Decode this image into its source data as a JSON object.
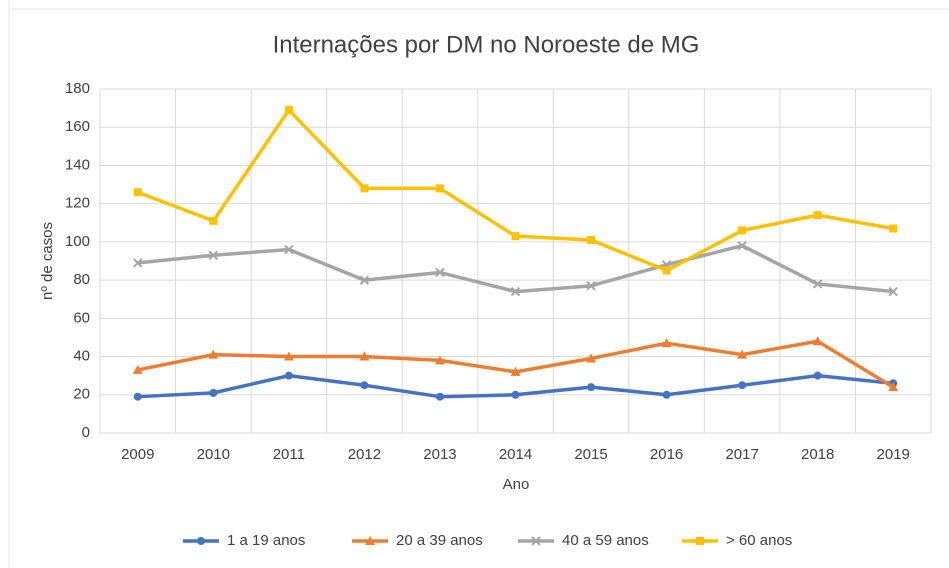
{
  "chart_data": {
    "type": "line",
    "title": "Internações por DM no Noroeste de MG",
    "x_label": "Ano",
    "y_label": "nº de casos",
    "categories": [
      "2009",
      "2010",
      "2011",
      "2012",
      "2013",
      "2014",
      "2015",
      "2016",
      "2017",
      "2018",
      "2019"
    ],
    "series": [
      {
        "name": "1 a 19 anos",
        "color": "#4472c4",
        "marker": "circle",
        "values": [
          19,
          21,
          30,
          25,
          19,
          20,
          24,
          20,
          25,
          30,
          26
        ]
      },
      {
        "name": "20 a 39 anos",
        "color": "#ed7d31",
        "marker": "triangle",
        "values": [
          33,
          41,
          40,
          40,
          38,
          32,
          39,
          47,
          41,
          48,
          24
        ]
      },
      {
        "name": "40 a 59 anos",
        "color": "#a5a5a5",
        "marker": "x",
        "values": [
          89,
          93,
          96,
          80,
          84,
          74,
          77,
          88,
          98,
          78,
          74
        ]
      },
      {
        "name": "> 60 anos",
        "color": "#ffc000",
        "marker": "square",
        "values": [
          126,
          111,
          169,
          128,
          128,
          103,
          101,
          85,
          106,
          114,
          107
        ]
      }
    ],
    "ylim": [
      0,
      180
    ],
    "yticks": [
      0,
      20,
      40,
      60,
      80,
      100,
      120,
      140,
      160,
      180
    ],
    "grid": true,
    "legend": "bottom"
  }
}
